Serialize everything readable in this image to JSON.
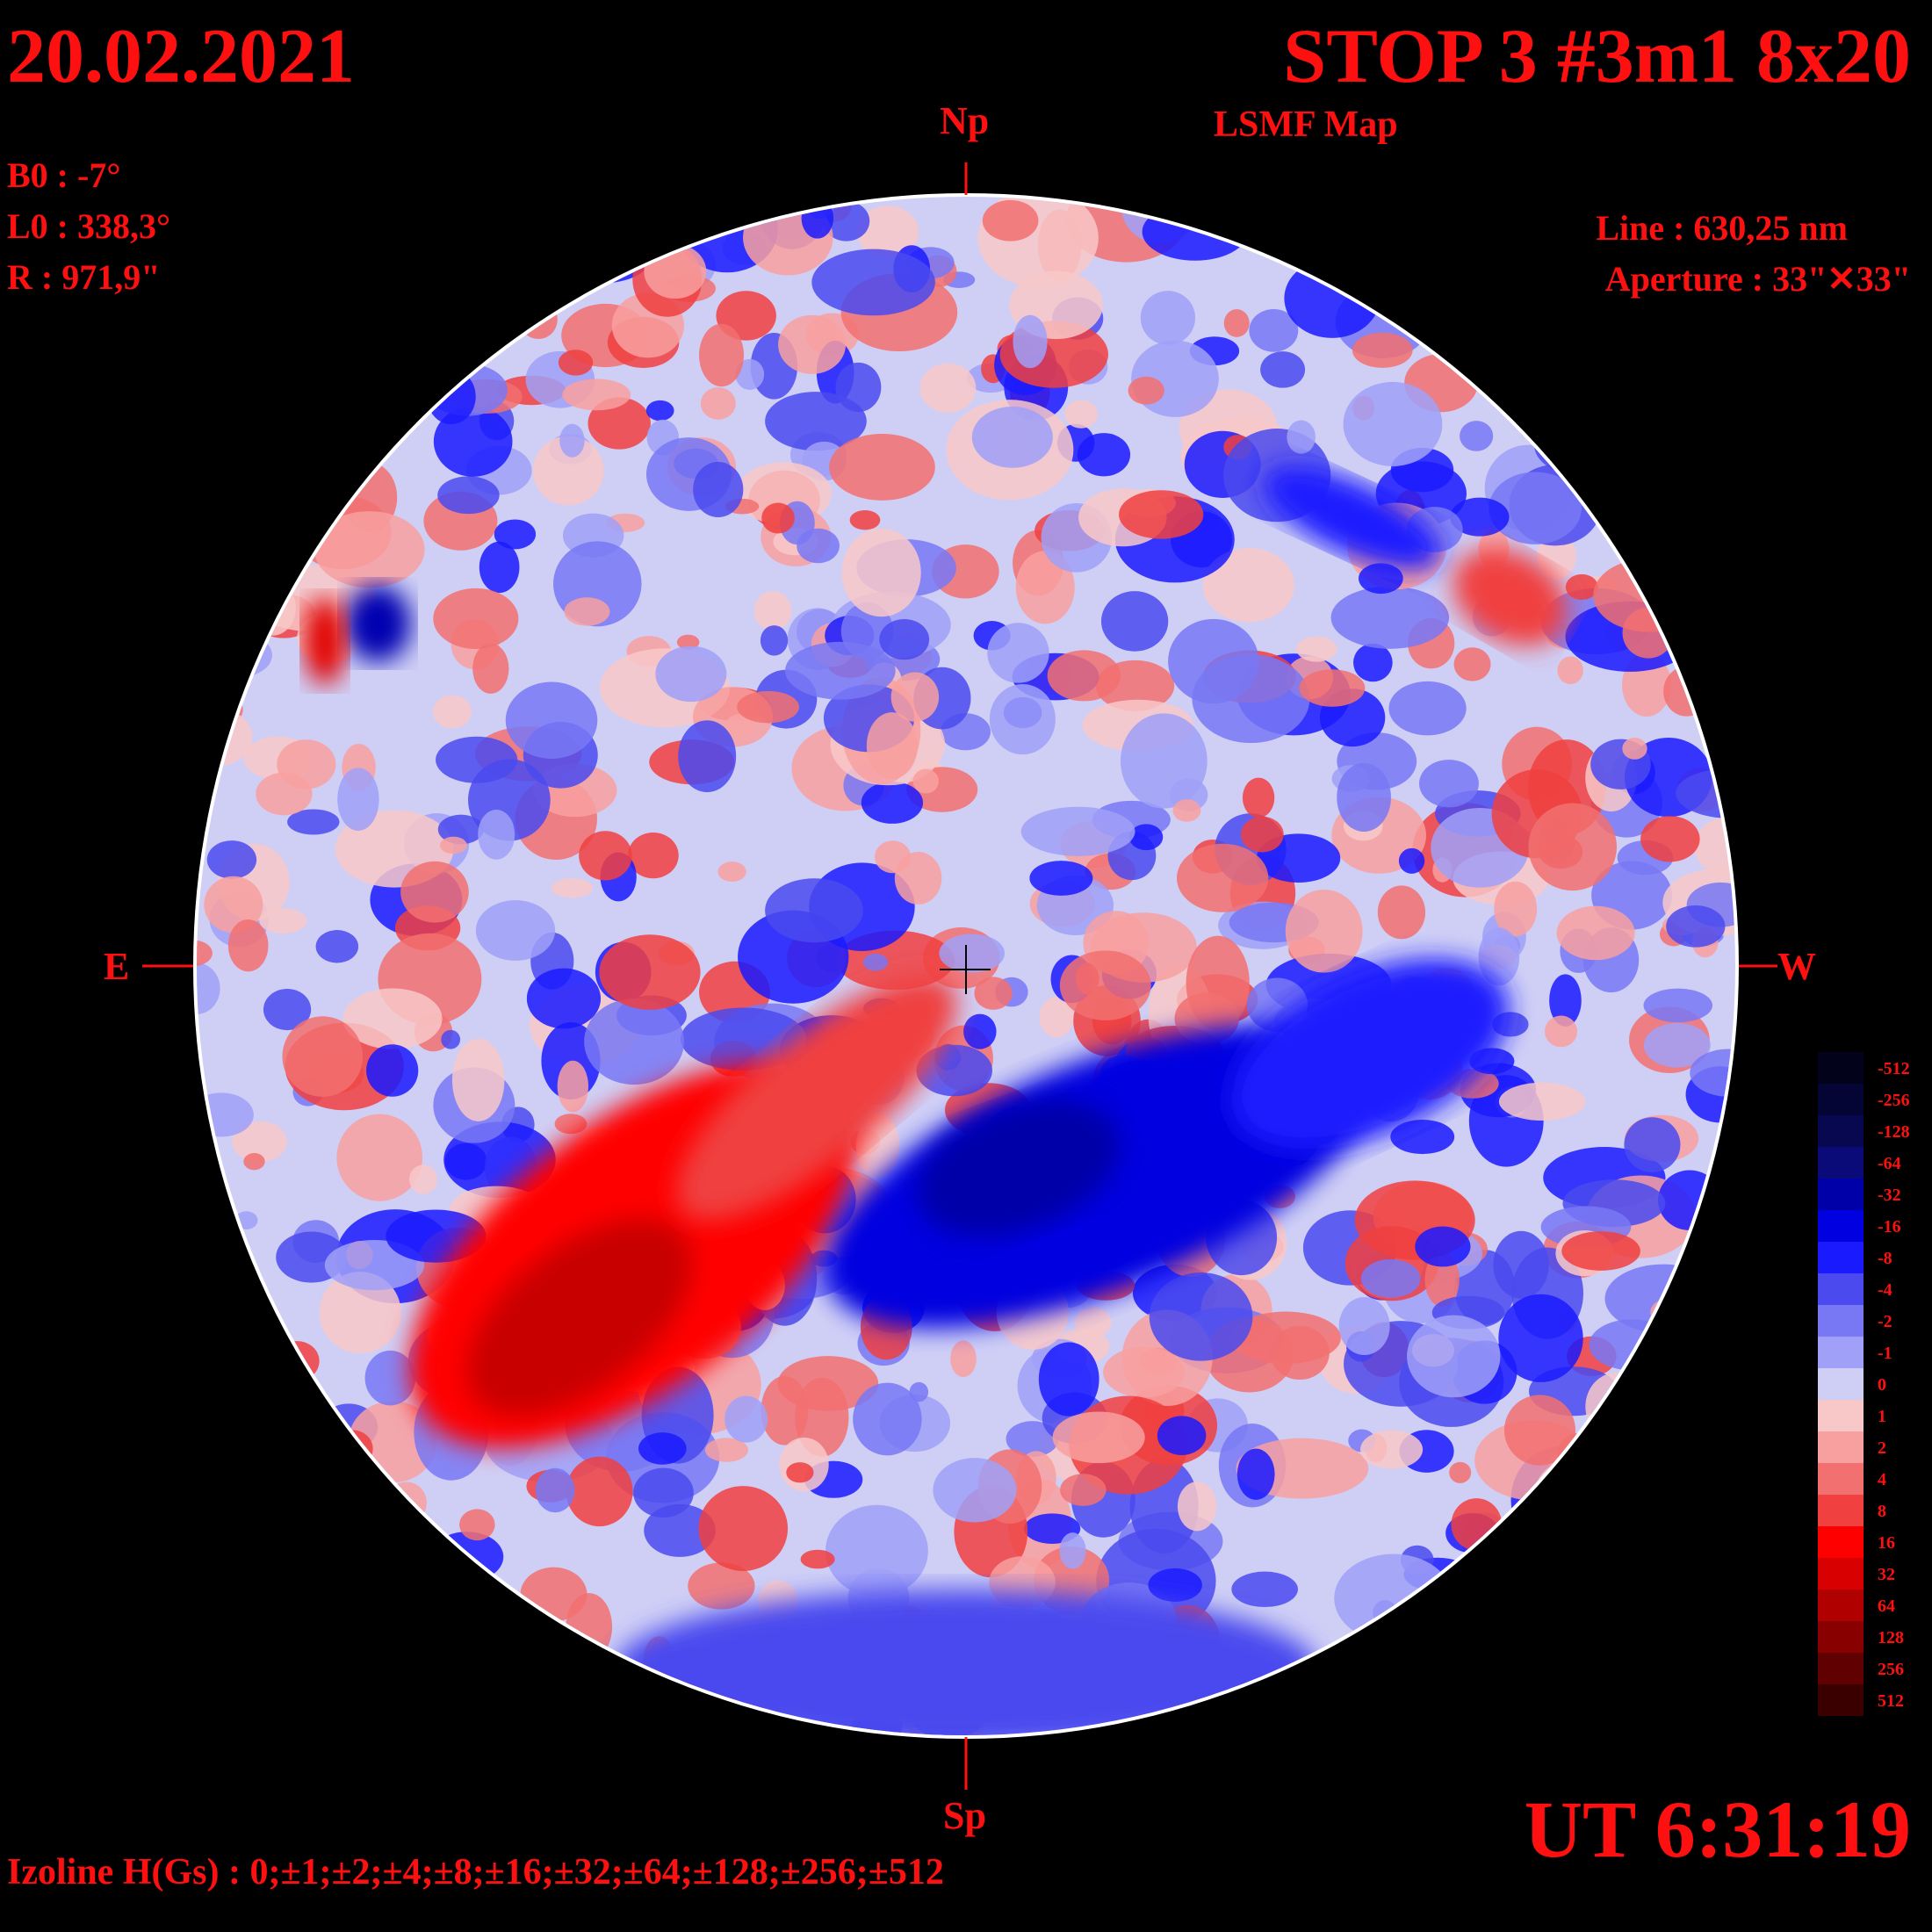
{
  "header": {
    "date": "20.02.2021",
    "title": "STOP 3 #3m1 8x20",
    "subtitle": "LSMF  Map"
  },
  "observation": {
    "b0": "B0 : -7°",
    "l0": "L0 : 338,3°",
    "radius": "R  : 971,9\"",
    "line": "Line :  630,25 nm",
    "aperture": "Aperture : 33\"✕33\""
  },
  "compass": {
    "north": "Np",
    "south": "Sp",
    "east": "E",
    "west": "W"
  },
  "footer": {
    "ut": "UT 6:31:19",
    "izoline": "Izoline H(Gs) : 0;±1;±2;±4;±8;±16;±32;±64;±128;±256;±512"
  },
  "legend": {
    "levels": [
      {
        "label": "-512",
        "color": "#02021a"
      },
      {
        "label": "-256",
        "color": "#050535"
      },
      {
        "label": "-128",
        "color": "#080850"
      },
      {
        "label": "-64",
        "color": "#0a0a78"
      },
      {
        "label": "-32",
        "color": "#0000a8"
      },
      {
        "label": "-16",
        "color": "#0000e0"
      },
      {
        "label": "-8",
        "color": "#1a1aff"
      },
      {
        "label": "-4",
        "color": "#4a4aef"
      },
      {
        "label": "-2",
        "color": "#7878f4"
      },
      {
        "label": "-1",
        "color": "#a0a0f8"
      },
      {
        "label": "0",
        "color": "#cfcff6"
      },
      {
        "label": "1",
        "color": "#f8c8c8"
      },
      {
        "label": "2",
        "color": "#f8a0a0"
      },
      {
        "label": "4",
        "color": "#f27070"
      },
      {
        "label": "8",
        "color": "#f04040"
      },
      {
        "label": "16",
        "color": "#ff0000"
      },
      {
        "label": "32",
        "color": "#d80000"
      },
      {
        "label": "64",
        "color": "#b00000"
      },
      {
        "label": "128",
        "color": "#880000"
      },
      {
        "label": "256",
        "color": "#600000"
      },
      {
        "label": "512",
        "color": "#3a0000"
      }
    ]
  },
  "colors": {
    "background": "#000000",
    "text": "#ff1010",
    "limb": "#ffffff"
  }
}
